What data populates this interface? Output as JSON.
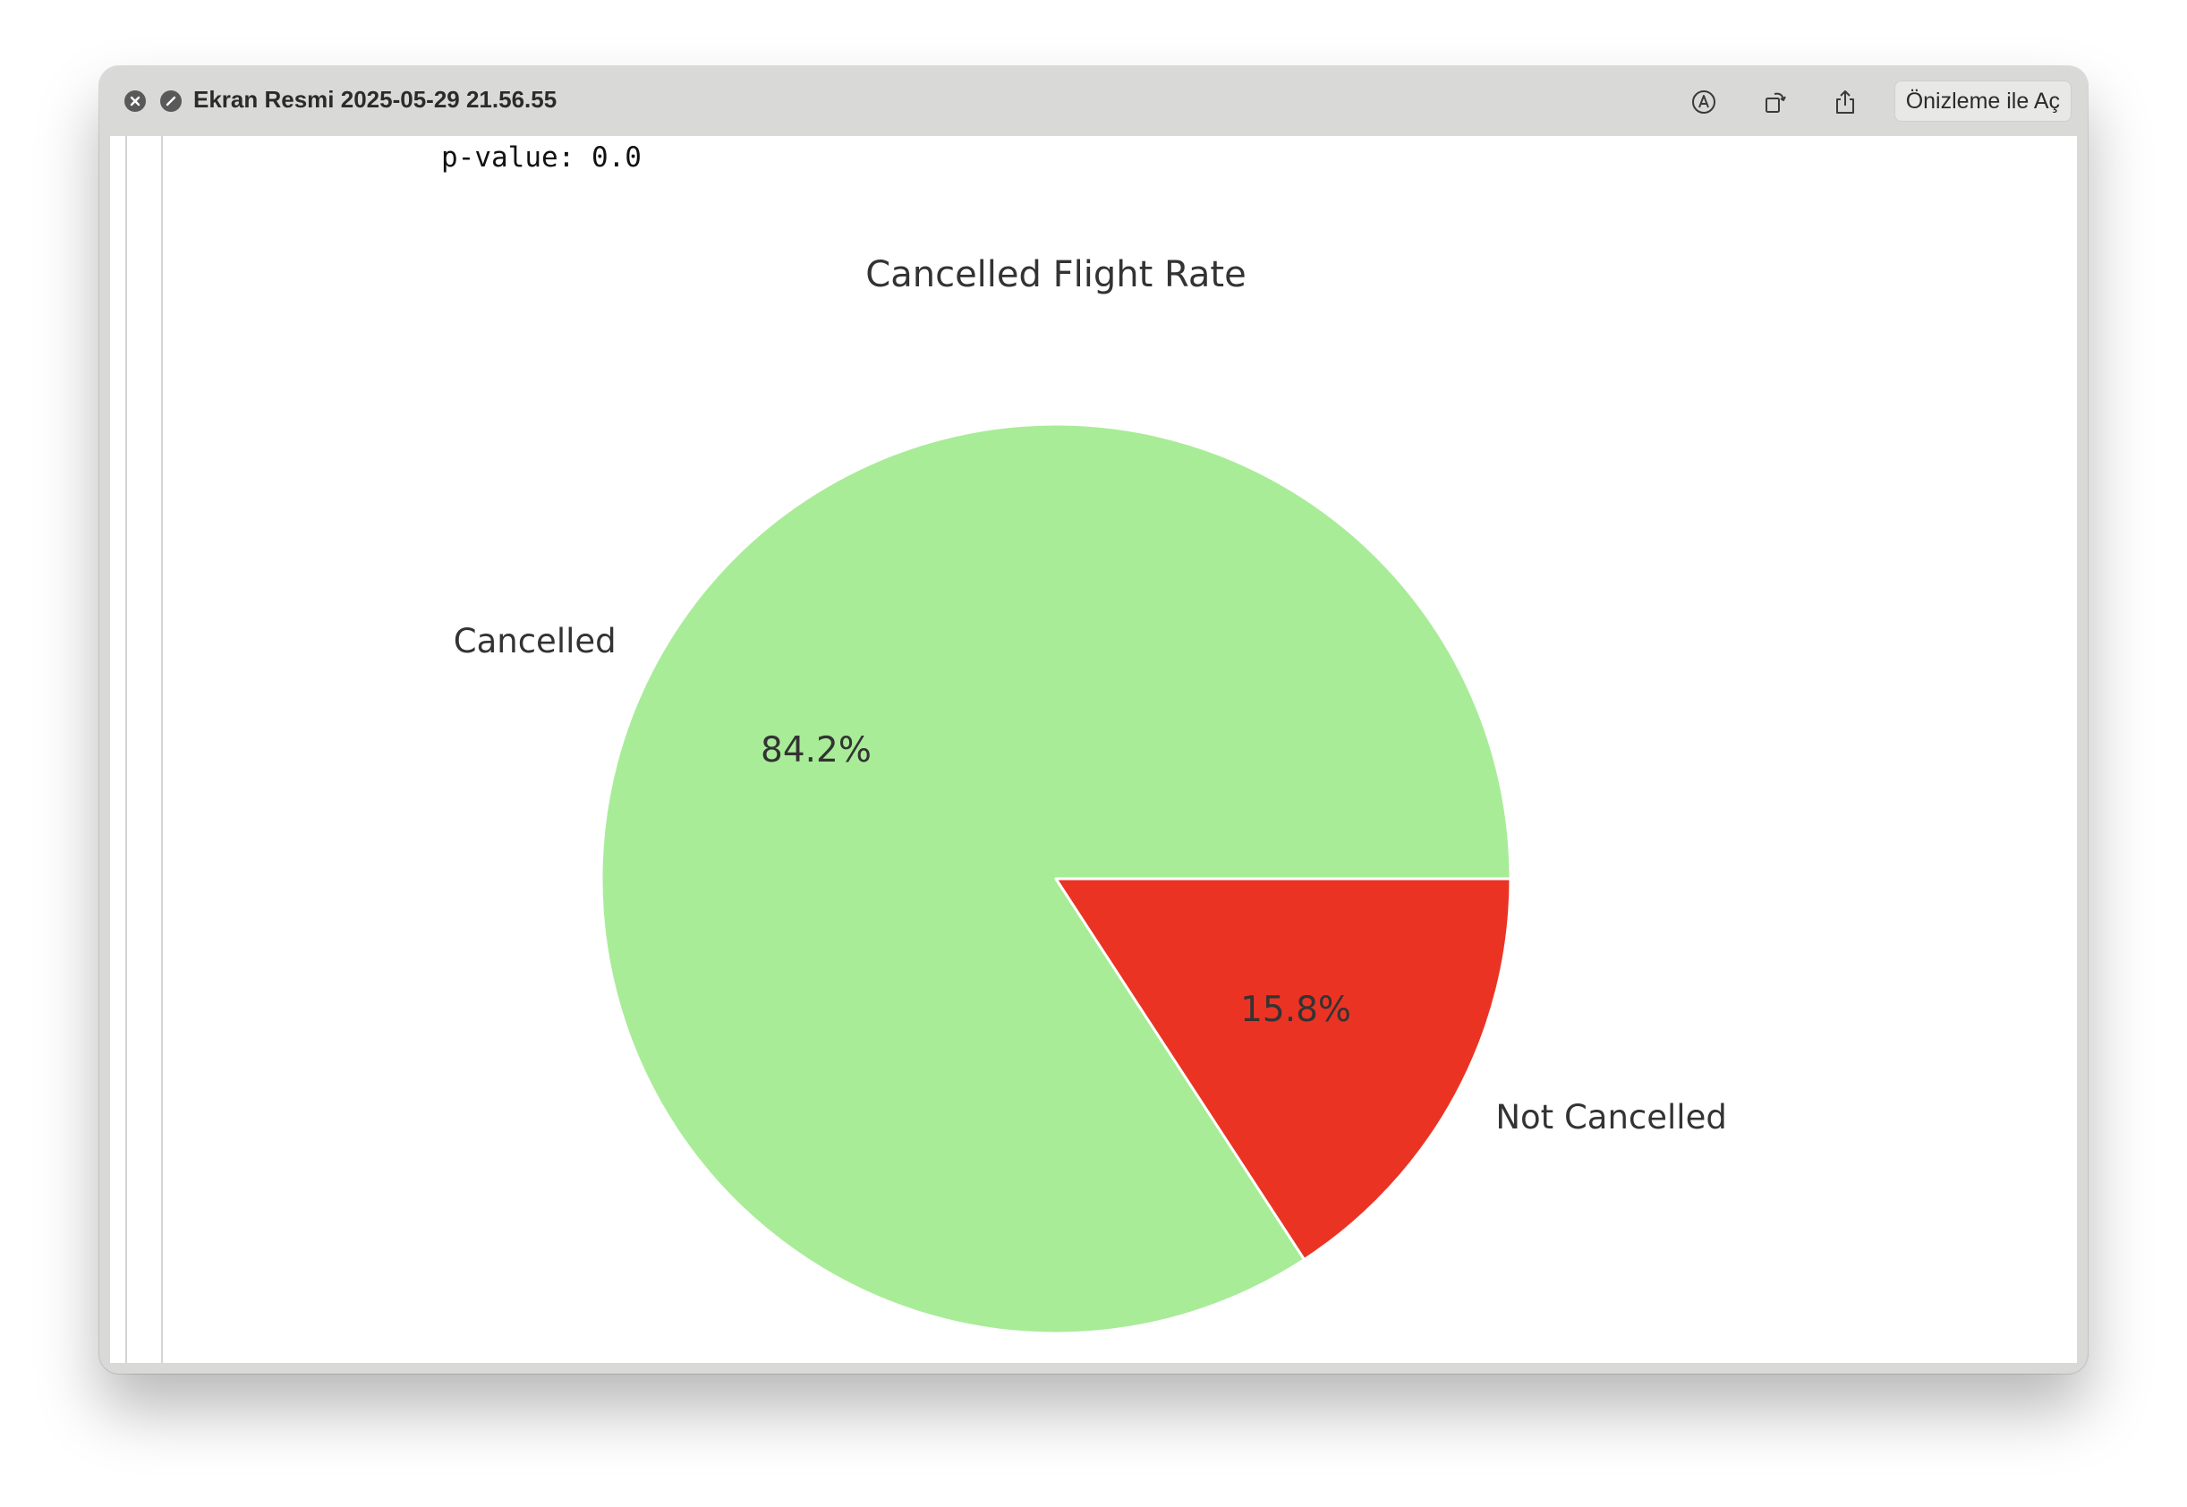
{
  "window": {
    "title": "Ekran Resmi 2025-05-29 21.56.55",
    "open_with_label": "Önizleme ile Aç",
    "icons": [
      "close-icon",
      "forbidden-icon",
      "markup-icon",
      "rotate-icon",
      "share-icon"
    ]
  },
  "output": {
    "pvalue_text": "p-value: 0.0"
  },
  "chart_data": {
    "type": "pie",
    "title": "Cancelled Flight Rate",
    "slices": [
      {
        "label": "Cancelled",
        "value": 84.2,
        "pct_label": "84.2%",
        "color": "#a8ec97"
      },
      {
        "label": "Not Cancelled",
        "value": 15.8,
        "pct_label": "15.8%",
        "color": "#eb3324"
      }
    ],
    "start_angle_deg": 0,
    "direction": "counterclockwise",
    "edge_color": "#ffffff"
  }
}
